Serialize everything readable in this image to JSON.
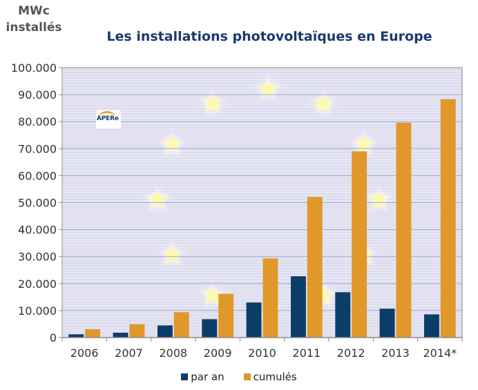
{
  "chart_data": {
    "type": "bar",
    "title": "Les installations photovoltaïques en Europe",
    "ylabel_line1": "MWc",
    "ylabel_line2": "installés",
    "xlabel": "",
    "categories": [
      "2006",
      "2007",
      "2008",
      "2009",
      "2010",
      "2011",
      "2012",
      "2013",
      "2014*"
    ],
    "series": [
      {
        "name": "par an",
        "color": "#0b3d6b",
        "values": [
          1200,
          1800,
          4500,
          6800,
          13000,
          22700,
          16800,
          10700,
          8600
        ]
      },
      {
        "name": "cumulés",
        "color": "#e0982a",
        "values": [
          3100,
          4900,
          9400,
          16200,
          29300,
          52100,
          69000,
          79600,
          88300
        ]
      }
    ],
    "ylim": [
      0,
      100000
    ],
    "yticks": [
      0,
      10000,
      20000,
      30000,
      40000,
      50000,
      60000,
      70000,
      80000,
      90000,
      100000
    ],
    "ytick_labels": [
      "0",
      "10.000",
      "20.000",
      "30.000",
      "40.000",
      "50.000",
      "60.000",
      "70.000",
      "80.000",
      "90.000",
      "100.000"
    ],
    "grid": true,
    "legend_position": "bottom",
    "background_color": "#d9d9ec",
    "background_stripe_color": "#e4e4f2",
    "star_color": "#fff8b0"
  },
  "logo": {
    "text": "APERe"
  }
}
